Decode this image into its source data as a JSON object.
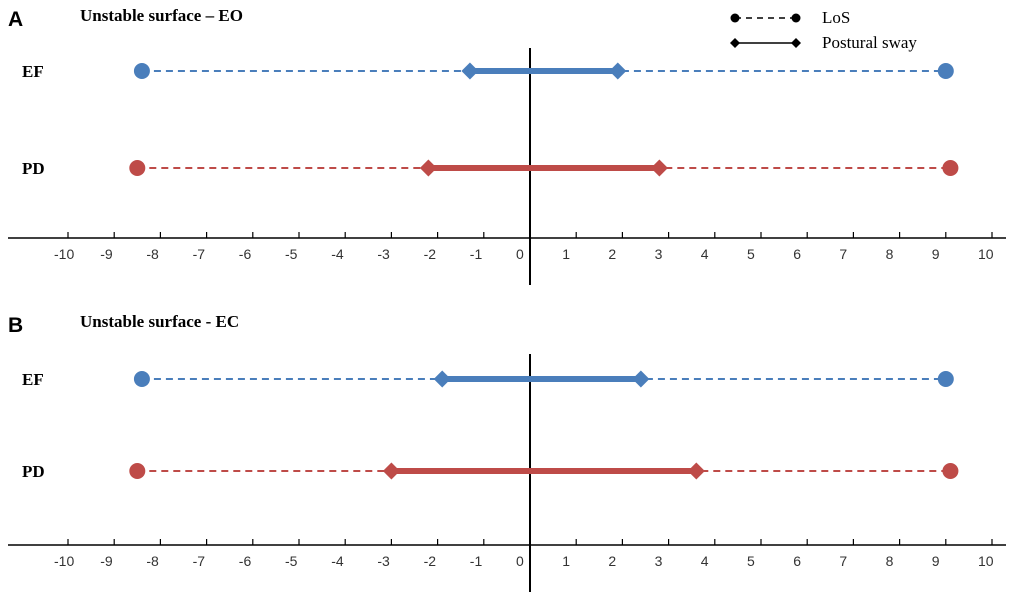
{
  "chart_data": [
    {
      "panel": "A",
      "title": "Unstable surface – EO",
      "type": "range",
      "xlim": [
        -10,
        10
      ],
      "ticks": [
        -10,
        -9,
        -8,
        -7,
        -6,
        -5,
        -4,
        -3,
        -2,
        -1,
        0,
        1,
        2,
        3,
        4,
        5,
        6,
        7,
        8,
        9,
        10
      ],
      "groups": [
        {
          "name": "EF",
          "color": "#4a7ebb",
          "los": [
            -8.4,
            9.0
          ],
          "sway": [
            -1.3,
            1.9
          ]
        },
        {
          "name": "PD",
          "color": "#be4b48",
          "los": [
            -8.5,
            9.1
          ],
          "sway": [
            -2.2,
            2.8
          ]
        }
      ]
    },
    {
      "panel": "B",
      "title": "Unstable surface - EC",
      "type": "range",
      "xlim": [
        -10,
        10
      ],
      "ticks": [
        -10,
        -9,
        -8,
        -7,
        -6,
        -5,
        -4,
        -3,
        -2,
        -1,
        0,
        1,
        2,
        3,
        4,
        5,
        6,
        7,
        8,
        9,
        10
      ],
      "groups": [
        {
          "name": "EF",
          "color": "#4a7ebb",
          "los": [
            -8.4,
            9.0
          ],
          "sway": [
            -1.9,
            2.4
          ]
        },
        {
          "name": "PD",
          "color": "#be4b48",
          "los": [
            -8.5,
            9.1
          ],
          "sway": [
            -3.0,
            3.6
          ]
        }
      ]
    }
  ],
  "legend": {
    "items": [
      {
        "label": "LoS",
        "style": "dashed-circle"
      },
      {
        "label": "Postural sway",
        "style": "solid-diamond"
      }
    ]
  }
}
